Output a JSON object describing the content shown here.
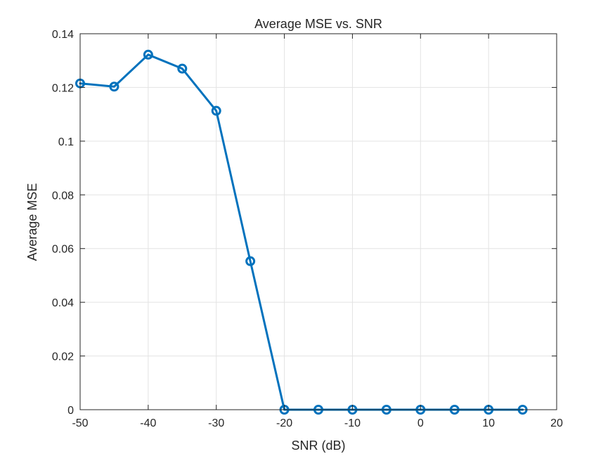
{
  "chart_data": {
    "type": "line",
    "title": "Average MSE vs. SNR",
    "xlabel": "SNR (dB)",
    "ylabel": "Average MSE",
    "xlim": [
      -50,
      20
    ],
    "ylim": [
      0,
      0.14
    ],
    "x_ticks": [
      -50,
      -40,
      -30,
      -20,
      -10,
      0,
      10,
      20
    ],
    "x_tick_labels": [
      "-50",
      "-40",
      "-30",
      "-20",
      "-10",
      "0",
      "10",
      "20"
    ],
    "y_ticks": [
      0,
      0.02,
      0.04,
      0.06,
      0.08,
      0.1,
      0.12,
      0.14
    ],
    "y_tick_labels": [
      "0",
      "0.02",
      "0.04",
      "0.06",
      "0.08",
      "0.1",
      "0.12",
      "0.14"
    ],
    "grid": true,
    "legend": "none",
    "series": [
      {
        "color": "#0072BD",
        "marker": "circle",
        "x": [
          -50,
          -45,
          -40,
          -35,
          -30,
          -25,
          -20,
          -15,
          -10,
          -5,
          0,
          5,
          10,
          15
        ],
        "y": [
          0.1215,
          0.1203,
          0.1322,
          0.127,
          0.1113,
          0.0553,
          0,
          0,
          0,
          0,
          0,
          0,
          0,
          0
        ]
      }
    ]
  }
}
